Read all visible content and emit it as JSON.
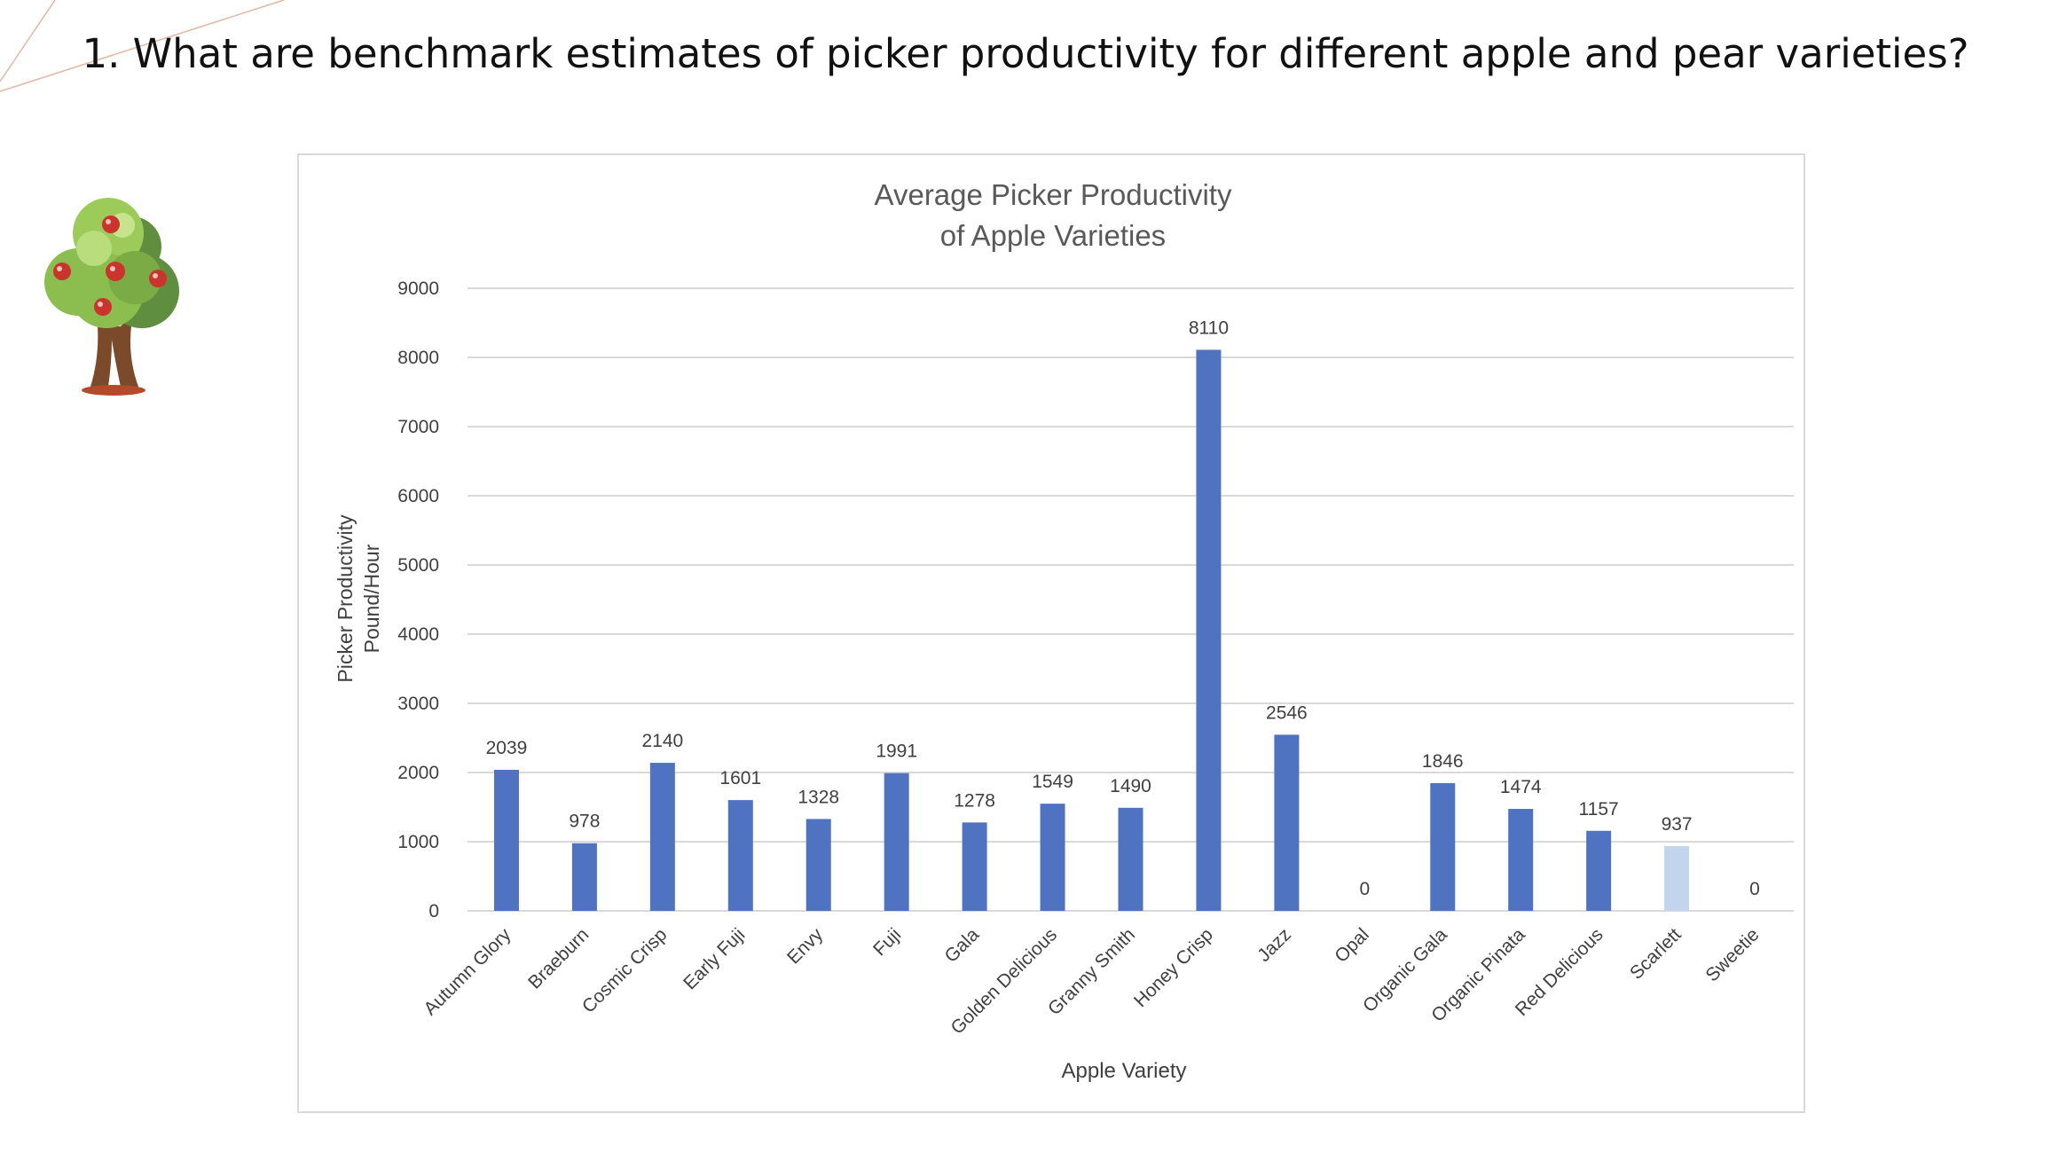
{
  "slide": {
    "title": "1. What are benchmark estimates of picker productivity for different apple and pear varieties?"
  },
  "colors": {
    "bar": "#4f72c1",
    "bar_highlight": "#c3d5ec",
    "grid": "#d9d9d9",
    "text": "#404040",
    "title_text": "#595959",
    "deco_line": "#e0b7a0"
  },
  "icons": {
    "decoration": "apple-tree-icon"
  },
  "chart_data": {
    "type": "bar",
    "title_lines": [
      "Average Picker Productivity",
      "of Apple Varieties"
    ],
    "xlabel": "Apple Variety",
    "ylabel_lines": [
      "Picker Productivity",
      "Pound/Hour"
    ],
    "ylim": [
      0,
      9000
    ],
    "yticks": [
      0,
      1000,
      2000,
      3000,
      4000,
      5000,
      6000,
      7000,
      8000,
      9000
    ],
    "grid": true,
    "legend": "none",
    "categories": [
      "Autumn Glory",
      "Braeburn",
      "Cosmic Crisp",
      "Early Fuji",
      "Envy",
      "Fuji",
      "Gala",
      "Golden Delicious",
      "Granny Smith",
      "Honey Crisp",
      "Jazz",
      "Opal",
      "Organic Gala",
      "Organic Pinata",
      "Red Delicious",
      "Scarlett",
      "Sweetie"
    ],
    "values": [
      2039,
      978,
      2140,
      1601,
      1328,
      1991,
      1278,
      1549,
      1490,
      8110,
      2546,
      0,
      1846,
      1474,
      1157,
      937,
      0
    ],
    "highlight_categories": [
      "Scarlett"
    ]
  }
}
